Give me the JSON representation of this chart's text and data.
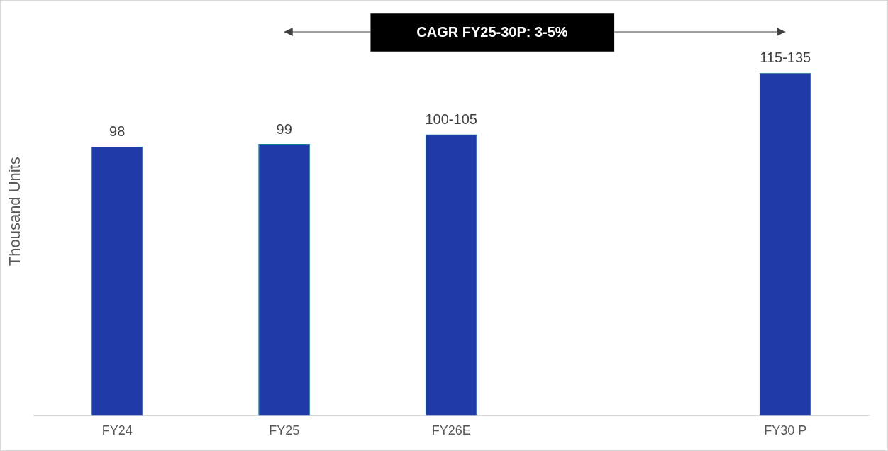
{
  "chart_data": {
    "type": "bar",
    "ylabel": "Thousand Units",
    "categories": [
      "FY24",
      "FY25",
      "FY26E",
      null,
      "FY30 P"
    ],
    "values": [
      98,
      99,
      102.5,
      null,
      125
    ],
    "value_labels": [
      "98",
      "99",
      "100-105",
      null,
      "115-135"
    ],
    "color": "#1f3ba8",
    "annotations": [
      {
        "text": "CAGR FY25-30P: 3-5%"
      }
    ],
    "tick_labels": "x",
    "grid": false,
    "legend": false
  }
}
